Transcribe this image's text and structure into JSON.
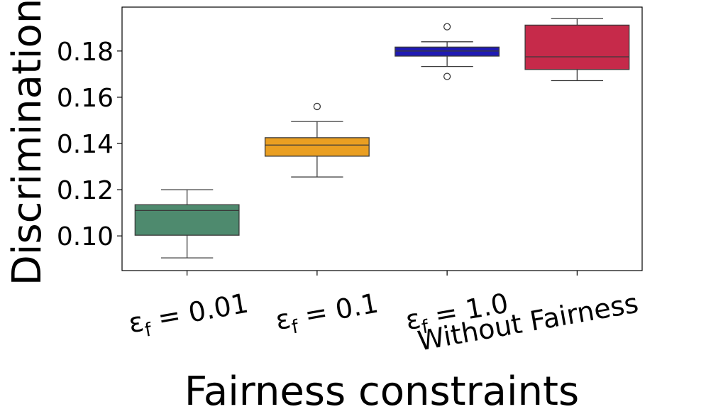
{
  "chart_data": {
    "type": "box",
    "title": "",
    "xlabel": "Fairness constraints",
    "ylabel": "Discrimination",
    "ylim": [
      0.085,
      0.199
    ],
    "yticks": [
      0.1,
      0.12,
      0.14,
      0.16,
      0.18
    ],
    "ytick_labels": [
      "0.10",
      "0.12",
      "0.14",
      "0.16",
      "0.18"
    ],
    "grid": false,
    "categories": [
      {
        "symbol": "ε",
        "subscript": "f",
        "rest": " = 0.01"
      },
      {
        "symbol": "ε",
        "subscript": "f",
        "rest": " = 0.1"
      },
      {
        "symbol": "ε",
        "subscript": "f",
        "rest": " = 1.0"
      },
      {
        "symbol": "",
        "subscript": "",
        "rest": "Without Fairness"
      }
    ],
    "boxes": [
      {
        "whisker_low": 0.0905,
        "q1": 0.1003,
        "median": 0.111,
        "q3": 0.1135,
        "whisker_high": 0.12,
        "outliers": [],
        "color": "#4e8a6e"
      },
      {
        "whisker_low": 0.1255,
        "q1": 0.1345,
        "median": 0.1393,
        "q3": 0.1425,
        "whisker_high": 0.1495,
        "outliers": [
          0.156
        ],
        "color": "#ea9f22"
      },
      {
        "whisker_low": 0.1733,
        "q1": 0.1778,
        "median": 0.18,
        "q3": 0.1817,
        "whisker_high": 0.184,
        "outliers": [
          0.1905,
          0.169
        ],
        "color": "#1f1ab3"
      },
      {
        "whisker_low": 0.1672,
        "q1": 0.172,
        "median": 0.1775,
        "q3": 0.1912,
        "whisker_high": 0.194,
        "outliers": [],
        "color": "#c62a4a"
      }
    ]
  }
}
